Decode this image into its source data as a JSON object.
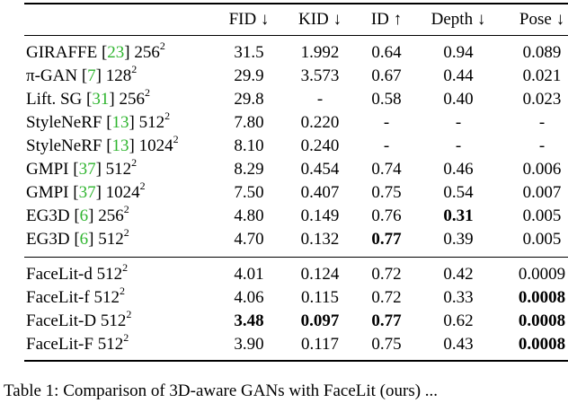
{
  "header": {
    "fid": "FID ↓",
    "kid": "KID ↓",
    "id": "ID ↑",
    "depth": "Depth ↓",
    "pose": "Pose ↓"
  },
  "rows": [
    {
      "name": "GIRAFFE",
      "ref": "23",
      "res": "256",
      "sup": "2",
      "fid": "31.5",
      "kid": "1.992",
      "id": "0.64",
      "depth": "0.94",
      "pose": "0.089"
    },
    {
      "name": "π-GAN",
      "ref": "7",
      "res": "128",
      "sup": "2",
      "fid": "29.9",
      "kid": "3.573",
      "id": "0.67",
      "depth": "0.44",
      "pose": "0.021"
    },
    {
      "name": "Lift. SG",
      "ref": "31",
      "res": "256",
      "sup": "2",
      "fid": "29.8",
      "kid": "-",
      "id": "0.58",
      "depth": "0.40",
      "pose": "0.023"
    },
    {
      "name": "StyleNeRF",
      "ref": "13",
      "res": "512",
      "sup": "2",
      "fid": "7.80",
      "kid": "0.220",
      "id": "-",
      "depth": "-",
      "pose": "-"
    },
    {
      "name": "StyleNeRF",
      "ref": "13",
      "res": "1024",
      "sup": "2",
      "fid": "8.10",
      "kid": "0.240",
      "id": "-",
      "depth": "-",
      "pose": "-"
    },
    {
      "name": "GMPI",
      "ref": "37",
      "res": "512",
      "sup": "2",
      "fid": "8.29",
      "kid": "0.454",
      "id": "0.74",
      "depth": "0.46",
      "pose": "0.006"
    },
    {
      "name": "GMPI",
      "ref": "37",
      "res": "1024",
      "sup": "2",
      "fid": "7.50",
      "kid": "0.407",
      "id": "0.75",
      "depth": "0.54",
      "pose": "0.007"
    },
    {
      "name": "EG3D",
      "ref": "6",
      "res": "256",
      "sup": "2",
      "fid": "4.80",
      "kid": "0.149",
      "id": "0.76",
      "depth": "0.31",
      "pose": "0.005"
    },
    {
      "name": "EG3D",
      "ref": "6",
      "res": "512",
      "sup": "2",
      "fid": "4.70",
      "kid": "0.132",
      "id": "0.77",
      "depth": "0.39",
      "pose": "0.005"
    }
  ],
  "facelit_rows": [
    {
      "name": "FaceLit-d",
      "res": "512",
      "sup": "2",
      "fid": "4.01",
      "kid": "0.124",
      "id": "0.72",
      "depth": "0.42",
      "pose": "0.0009"
    },
    {
      "name": "FaceLit-f",
      "res": "512",
      "sup": "2",
      "fid": "4.06",
      "kid": "0.115",
      "id": "0.72",
      "depth": "0.33",
      "pose": "0.0008"
    },
    {
      "name": "FaceLit-D",
      "res": "512",
      "sup": "2",
      "fid": "3.48",
      "kid": "0.097",
      "id": "0.77",
      "depth": "0.62",
      "pose": "0.0008"
    },
    {
      "name": "FaceLit-F",
      "res": "512",
      "sup": "2",
      "fid": "3.90",
      "kid": "0.117",
      "id": "0.75",
      "depth": "0.43",
      "pose": "0.0008"
    }
  ],
  "caption": "Table 1: Comparison of 3D-aware GANs with FaceLit (ours) ..."
}
